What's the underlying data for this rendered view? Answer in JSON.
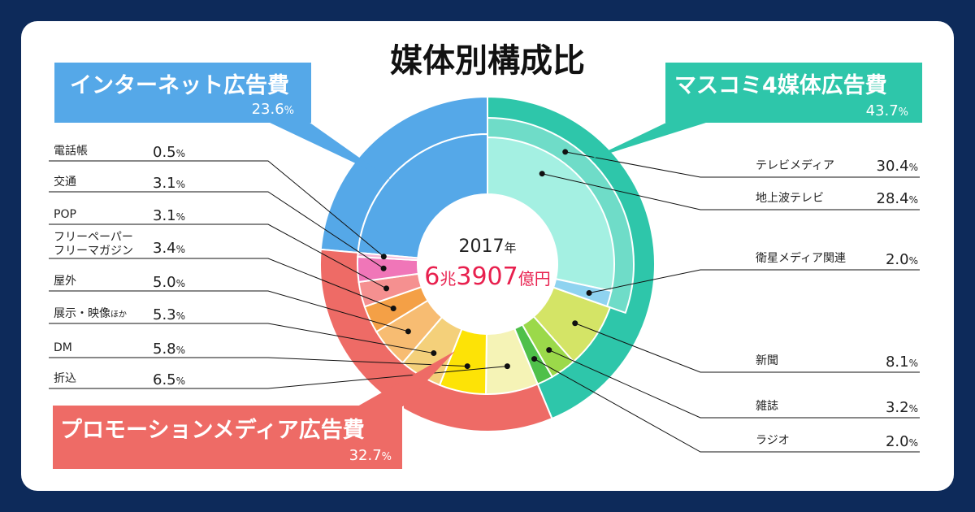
{
  "chart_data": {
    "type": "pie",
    "title": "媒体別構成比",
    "center": {
      "year": "2017",
      "year_unit": "年",
      "total_a": "6",
      "total_a_unit": "兆",
      "total_b": "3907",
      "total_b_unit": "億円"
    },
    "categories": [
      {
        "name": "インターネット広告費",
        "value": 23.6,
        "value_text": "23.6",
        "pct": "%",
        "color": "#55a8e8"
      },
      {
        "name": "マスコミ4媒体広告費",
        "value": 43.7,
        "value_text": "43.7",
        "pct": "%",
        "color": "#2ec6aa"
      },
      {
        "name": "プロモーションメディア広告費",
        "value": 32.7,
        "value_text": "32.7",
        "pct": "%",
        "color": "#ee6b66"
      }
    ],
    "mass_media": [
      {
        "name": "テレビメディア",
        "value": 30.4,
        "value_text": "30.4",
        "pct": "%",
        "color": "#6fdcc8"
      },
      {
        "name": "新聞",
        "value": 8.1,
        "value_text": "8.1",
        "pct": "%",
        "color": "#d4e466"
      },
      {
        "name": "雑誌",
        "value": 3.2,
        "value_text": "3.2",
        "pct": "%",
        "color": "#9bd94a"
      },
      {
        "name": "ラジオ",
        "value": 2.0,
        "value_text": "2.0",
        "pct": "%",
        "color": "#4fc04a"
      }
    ],
    "tv_media": [
      {
        "name": "地上波テレビ",
        "value": 28.4,
        "value_text": "28.4",
        "pct": "%",
        "color": "#a4f0e2"
      },
      {
        "name": "衛星メディア関連",
        "value": 2.0,
        "value_text": "2.0",
        "pct": "%",
        "color": "#8fd3f0"
      }
    ],
    "promotion_media": [
      {
        "name": "折込",
        "value": 6.5,
        "value_text": "6.5",
        "pct": "%",
        "color": "#f5f3b6"
      },
      {
        "name": "DM",
        "value": 5.8,
        "value_text": "5.8",
        "pct": "%",
        "color": "#fde306"
      },
      {
        "name": "展示・映像",
        "name_suffix": "ほか",
        "value": 5.3,
        "value_text": "5.3",
        "pct": "%",
        "color": "#f4d07a"
      },
      {
        "name": "屋外",
        "value": 5.0,
        "value_text": "5.0",
        "pct": "%",
        "color": "#f7bc72"
      },
      {
        "name_lines": [
          "フリーペーパー",
          "フリーマガジン"
        ],
        "value": 3.4,
        "value_text": "3.4",
        "pct": "%",
        "color": "#f4a046"
      },
      {
        "name": "POP",
        "value": 3.1,
        "value_text": "3.1",
        "pct": "%",
        "color": "#f59090"
      },
      {
        "name": "交通",
        "value": 3.1,
        "value_text": "3.1",
        "pct": "%",
        "color": "#f076b8"
      },
      {
        "name": "電話帳",
        "value": 0.5,
        "value_text": "0.5",
        "pct": "%",
        "color": "#f7b6d6"
      }
    ]
  }
}
